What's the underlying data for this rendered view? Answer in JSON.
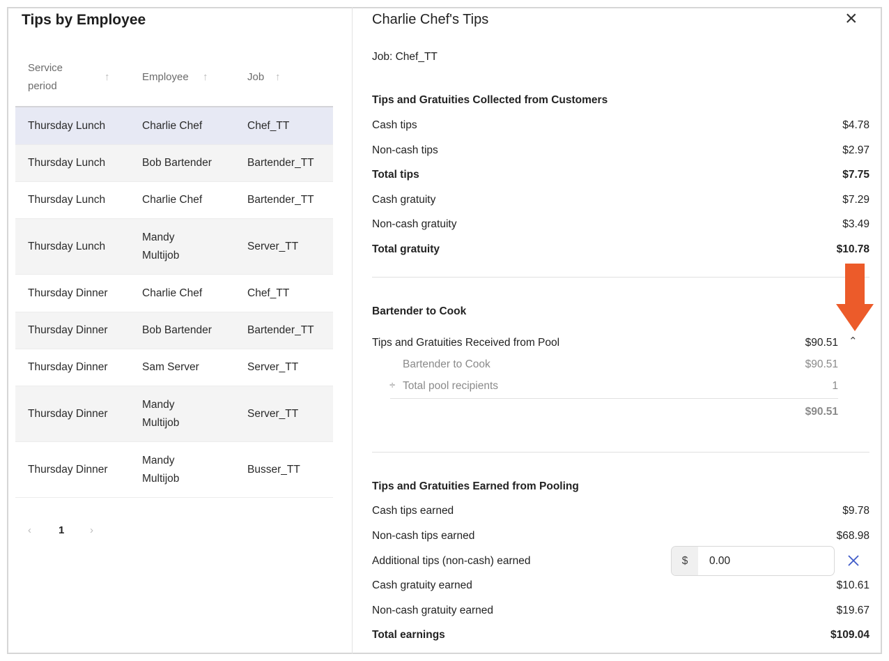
{
  "left": {
    "title": "Tips by Employee",
    "columns": [
      "Service\nperiod",
      "Employee",
      "Job"
    ],
    "col_lines": [
      [
        "Service",
        "period"
      ],
      [
        "Employee"
      ],
      [
        "Job"
      ]
    ],
    "rows": [
      {
        "period": "Thursday Lunch",
        "employee": [
          "Charlie Chef"
        ],
        "job": "Chef_TT"
      },
      {
        "period": "Thursday Lunch",
        "employee": [
          "Bob Bartender"
        ],
        "job": "Bartender_TT"
      },
      {
        "period": "Thursday Lunch",
        "employee": [
          "Charlie Chef"
        ],
        "job": "Bartender_TT"
      },
      {
        "period": "Thursday Lunch",
        "employee": [
          "Mandy",
          "Multijob"
        ],
        "job": "Server_TT"
      },
      {
        "period": "Thursday Dinner",
        "employee": [
          "Charlie Chef"
        ],
        "job": "Chef_TT"
      },
      {
        "period": "Thursday Dinner",
        "employee": [
          "Bob Bartender"
        ],
        "job": "Bartender_TT"
      },
      {
        "period": "Thursday Dinner",
        "employee": [
          "Sam Server"
        ],
        "job": "Server_TT"
      },
      {
        "period": "Thursday Dinner",
        "employee": [
          "Mandy",
          "Multijob"
        ],
        "job": "Server_TT"
      },
      {
        "period": "Thursday Dinner",
        "employee": [
          "Mandy",
          "Multijob"
        ],
        "job": "Busser_TT"
      }
    ],
    "selected_row": 0,
    "pagination": {
      "prev": "‹",
      "page": "1",
      "next": "›"
    }
  },
  "detail": {
    "title": "Charlie Chef's Tips",
    "close": "×",
    "job": "Job: Chef_TT",
    "collected": {
      "heading": "Tips and Gratuities Collected from Customers",
      "rows": [
        {
          "label": "Cash tips",
          "value": "$4.78"
        },
        {
          "label": "Non-cash tips",
          "value": "$2.97"
        },
        {
          "label": "Total tips",
          "value": "$7.75",
          "bold": true
        },
        {
          "label": "Cash gratuity",
          "value": "$7.29"
        },
        {
          "label": "Non-cash gratuity",
          "value": "$3.49"
        },
        {
          "label": "Total gratuity",
          "value": "$10.78",
          "bold": true
        }
      ]
    },
    "pool": {
      "heading": "Bartender to Cook",
      "received_label": "Tips and Gratuities Received from Pool",
      "received_value": "$90.51",
      "sub": [
        {
          "prefix": "",
          "label": "Bartender to Cook",
          "value": "$90.51"
        },
        {
          "prefix": "÷",
          "label": "Total pool recipients",
          "value": "1"
        }
      ],
      "result": "$90.51"
    },
    "earned": {
      "heading": "Tips and Gratuities Earned from Pooling",
      "rows": [
        {
          "label": "Cash tips earned",
          "value": "$9.78"
        },
        {
          "label": "Non-cash tips earned",
          "value": "$68.98"
        }
      ],
      "additional": {
        "label": "Additional tips (non-cash) earned",
        "prefix": "$",
        "value": "0.00"
      },
      "rows2": [
        {
          "label": "Cash gratuity earned",
          "value": "$10.61"
        },
        {
          "label": "Non-cash gratuity earned",
          "value": "$19.67"
        },
        {
          "label": "Total earnings",
          "value": "$109.04",
          "bold": true
        }
      ]
    }
  },
  "colors": {
    "annotation_arrow": "#ec5b2a",
    "selected_row": "#e7e9f4",
    "clear_icon": "#3f5bc8"
  }
}
